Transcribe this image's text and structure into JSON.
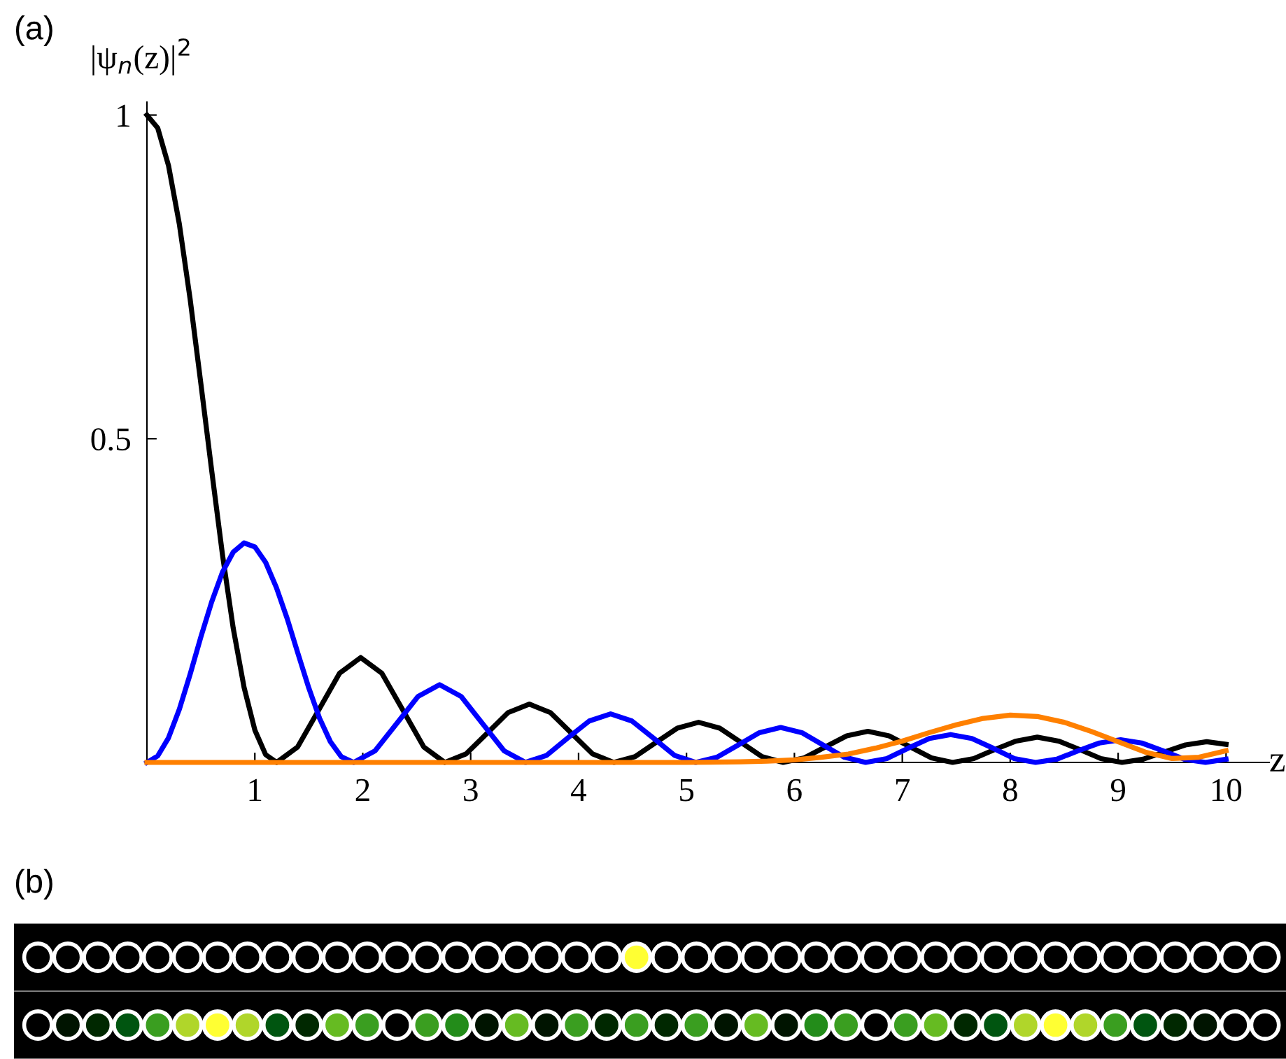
{
  "chart_data": [
    {
      "type": "line",
      "title": "(a)",
      "xlabel": "z",
      "ylabel": "|ψ$_{n}$(z)|$^{2}$",
      "xlim": [
        0,
        10.4
      ],
      "ylim": [
        0,
        1.02
      ],
      "xticks": [
        1,
        2,
        3,
        4,
        5,
        6,
        7,
        8,
        9,
        10
      ],
      "yticks": [
        0.5,
        1
      ],
      "grid": false,
      "legend": false,
      "marker": "none",
      "line_style": "solid",
      "series": [
        {
          "color": "#000000",
          "x": [
            0,
            0.1,
            0.2,
            0.3,
            0.4,
            0.5,
            0.6,
            0.7,
            0.8,
            0.9,
            1.0,
            1.1,
            1.202,
            1.397,
            1.592,
            1.786,
            1.981,
            2.176,
            2.371,
            2.565,
            2.76,
            2.956,
            3.152,
            3.347,
            3.544,
            3.739,
            3.935,
            4.131,
            4.327,
            4.523,
            4.719,
            4.915,
            5.112,
            5.308,
            5.504,
            5.7,
            5.896,
            6.092,
            6.288,
            6.485,
            6.681,
            6.877,
            7.073,
            7.27,
            7.466,
            7.662,
            7.858,
            8.055,
            8.251,
            8.447,
            8.643,
            8.84,
            9.036,
            9.232,
            9.428,
            9.624,
            9.821,
            10
          ],
          "values": [
            1,
            0.98,
            0.922,
            0.832,
            0.716,
            0.585,
            0.451,
            0.321,
            0.207,
            0.116,
            0.05,
            0.012,
            0,
            0.024,
            0.081,
            0.138,
            0.162,
            0.138,
            0.081,
            0.024,
            0,
            0.013,
            0.045,
            0.077,
            0.09,
            0.077,
            0.045,
            0.013,
            0,
            0.009,
            0.031,
            0.053,
            0.062,
            0.053,
            0.031,
            0.009,
            0,
            0.007,
            0.024,
            0.041,
            0.048,
            0.041,
            0.024,
            0.007,
            0,
            0.006,
            0.02,
            0.033,
            0.039,
            0.033,
            0.02,
            0.006,
            0,
            0.005,
            0.016,
            0.027,
            0.032,
            0.028
          ]
        },
        {
          "color": "#0000ff",
          "x": [
            0,
            0.1,
            0.2,
            0.3,
            0.4,
            0.5,
            0.6,
            0.7,
            0.8,
            0.9,
            1.0,
            1.1,
            1.2,
            1.3,
            1.4,
            1.5,
            1.6,
            1.7,
            1.8,
            1.916,
            2.115,
            2.314,
            2.513,
            2.712,
            2.911,
            3.11,
            3.309,
            3.508,
            3.705,
            3.902,
            4.099,
            4.297,
            4.494,
            4.691,
            4.888,
            5.085,
            5.282,
            5.479,
            5.676,
            5.873,
            6.069,
            6.266,
            6.463,
            6.66,
            6.857,
            7.054,
            7.251,
            7.448,
            7.644,
            7.841,
            8.038,
            8.235,
            8.432,
            8.629,
            8.826,
            9.023,
            9.219,
            9.416,
            9.613,
            9.81,
            10
          ],
          "values": [
            0,
            0.01,
            0.038,
            0.082,
            0.136,
            0.194,
            0.248,
            0.294,
            0.325,
            0.339,
            0.333,
            0.309,
            0.27,
            0.222,
            0.168,
            0.115,
            0.068,
            0.032,
            0.009,
            0,
            0.018,
            0.06,
            0.102,
            0.12,
            0.102,
            0.06,
            0.018,
            0,
            0.011,
            0.038,
            0.064,
            0.075,
            0.064,
            0.038,
            0.011,
            0,
            0.008,
            0.027,
            0.046,
            0.054,
            0.046,
            0.027,
            0.008,
            0,
            0.006,
            0.022,
            0.037,
            0.043,
            0.037,
            0.022,
            0.006,
            0,
            0.005,
            0.018,
            0.03,
            0.035,
            0.03,
            0.018,
            0.005,
            0,
            0.005
          ]
        },
        {
          "color": "#ff8000",
          "x": [
            0,
            5,
            5.5,
            5.75,
            6,
            6.25,
            6.5,
            6.75,
            7,
            7.25,
            7.5,
            7.75,
            8,
            8.25,
            8.5,
            8.75,
            9,
            9.25,
            9.5,
            9.75,
            10
          ],
          "values": [
            0,
            0,
            0.001,
            0.002,
            0.004,
            0.008,
            0.013,
            0.022,
            0.033,
            0.046,
            0.058,
            0.068,
            0.073,
            0.071,
            0.062,
            0.048,
            0.032,
            0.016,
            0.006,
            0.008,
            0.018
          ]
        }
      ]
    },
    {
      "type": "other",
      "title": "(b)"
    }
  ]
}
